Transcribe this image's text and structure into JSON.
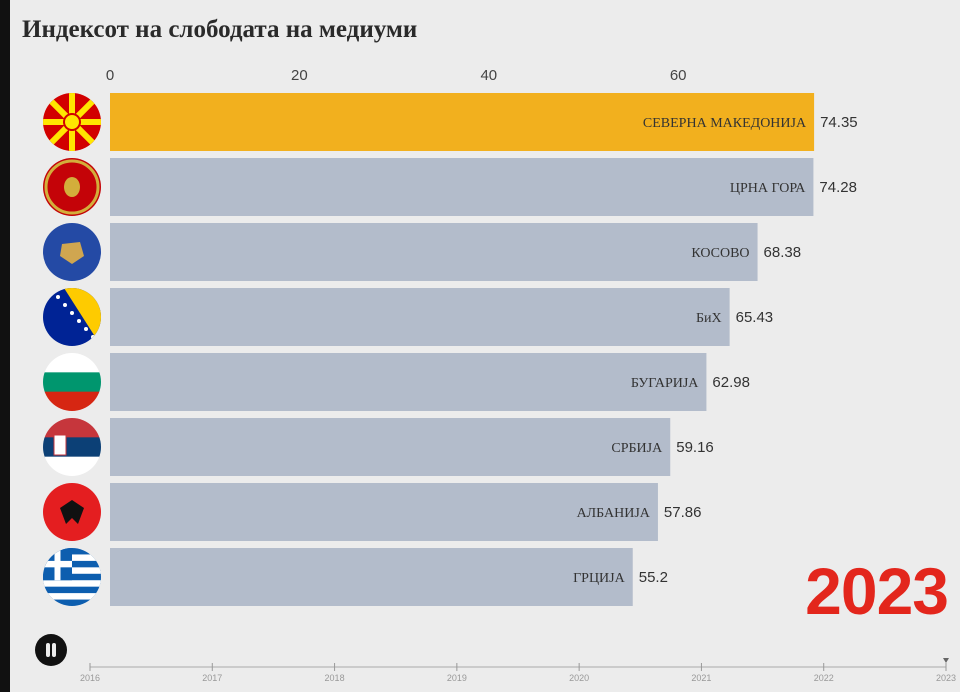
{
  "title": "Индексот на слободата на медиуми",
  "year": "2023",
  "timeline": {
    "years": [
      "2016",
      "2017",
      "2018",
      "2019",
      "2020",
      "2021",
      "2022",
      "2023"
    ],
    "current": "2023"
  },
  "chart_data": {
    "type": "bar",
    "orientation": "horizontal",
    "title": "Индексот на слободата на медиуми",
    "xlim": [
      0,
      75
    ],
    "xticks": [
      0,
      20,
      40,
      60
    ],
    "categories": [
      "СЕВЕРНА МАКЕДОНИЈА",
      "ЦРНА ГОРА",
      "КОСОВО",
      "БиХ",
      "БУГАРИЈА",
      "СРБИЈА",
      "АЛБАНИЈА",
      "ГРЦИЈА"
    ],
    "values": [
      74.35,
      74.28,
      68.38,
      65.43,
      62.98,
      59.16,
      57.86,
      55.2
    ],
    "value_labels": [
      "74.35",
      "74.28",
      "68.38",
      "65.43",
      "62.98",
      "59.16",
      "57.86",
      "55.2"
    ],
    "flags": [
      "north-macedonia",
      "montenegro",
      "kosovo",
      "bosnia",
      "bulgaria",
      "serbia",
      "albania",
      "greece"
    ],
    "colors": {
      "highlight": "#f2b01e",
      "default": "#b3bccb"
    }
  }
}
